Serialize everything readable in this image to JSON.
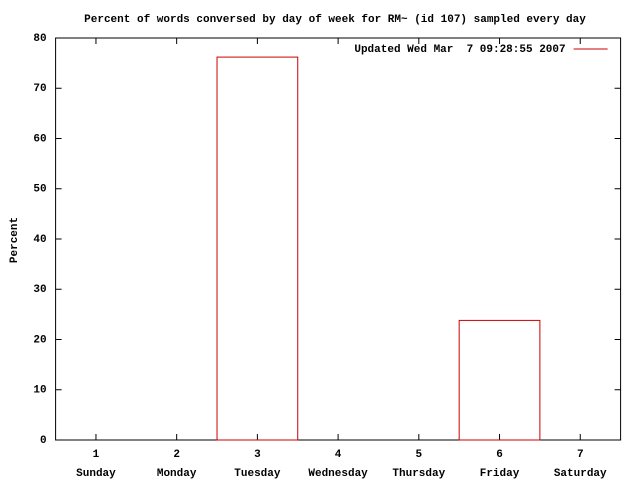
{
  "chart_data": {
    "type": "bar",
    "title": "Percent of words conversed by day of week for RM~ (id 107) sampled every day",
    "y_label": "Percent",
    "x": [
      1,
      2,
      3,
      4,
      5,
      6,
      7
    ],
    "categories": [
      "Sunday",
      "Monday",
      "Tuesday",
      "Wednesday",
      "Thursday",
      "Friday",
      "Saturday"
    ],
    "series": [
      {
        "name": "Updated Wed Mar  7 09:28:55 2007",
        "color": "#cc0000",
        "values": [
          0,
          0,
          76.2,
          0,
          0,
          23.8,
          0
        ]
      }
    ],
    "bar_width": 1,
    "xlim": [
      0.5,
      7.5
    ],
    "xticks": [
      1,
      2,
      3,
      4,
      5,
      6,
      7
    ],
    "ylim": [
      0,
      80
    ],
    "yticks": [
      0,
      10,
      20,
      30,
      40,
      50,
      60,
      70,
      80
    ],
    "legend": "top-right"
  }
}
